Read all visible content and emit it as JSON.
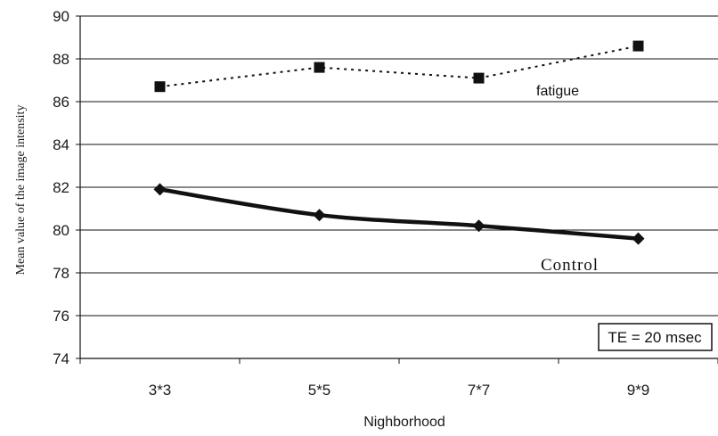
{
  "chart_data": {
    "type": "line",
    "categories": [
      "3*3",
      "5*5",
      "7*7",
      "9*9"
    ],
    "xlabel": "Nighborhood",
    "ylabel": "Mean value of the image intensity",
    "ylim": [
      74,
      90
    ],
    "yticks": [
      74,
      76,
      78,
      80,
      82,
      84,
      86,
      88,
      90
    ],
    "grid": "horizontal",
    "annotation": "TE = 20 msec",
    "series": [
      {
        "name": "fatigue",
        "values": [
          86.7,
          87.6,
          87.1,
          88.6
        ],
        "marker": "square",
        "line_style": "dotted",
        "color": "#111111"
      },
      {
        "name": "Control",
        "values": [
          81.9,
          80.7,
          80.2,
          79.6
        ],
        "marker": "diamond",
        "line_style": "solid-thick",
        "color": "#111111"
      }
    ]
  }
}
